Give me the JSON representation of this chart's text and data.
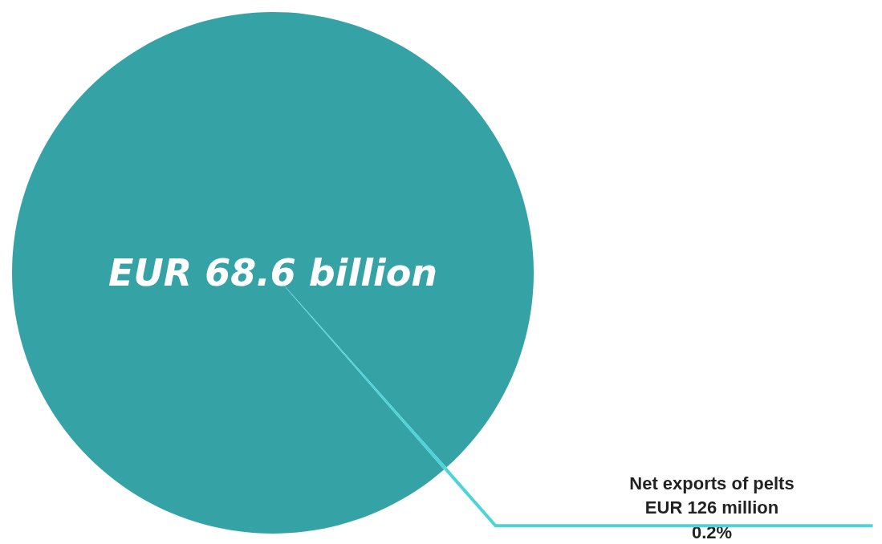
{
  "chart_data": {
    "type": "pie",
    "categories": [
      null,
      "Net exports of pelts"
    ],
    "values": [
      99.8,
      0.2
    ],
    "colors": [
      "#35a3a6",
      "#4dd4d8"
    ],
    "value_labels": [
      "EUR 68.6 billion",
      "EUR 126 million"
    ],
    "annotations": [
      "0.2%"
    ]
  }
}
